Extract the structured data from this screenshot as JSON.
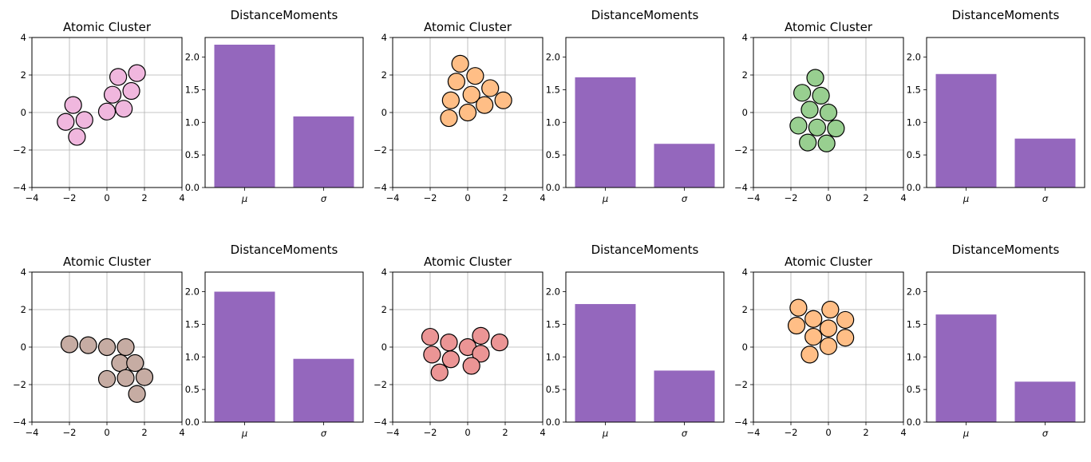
{
  "chart_data": [
    {
      "type": "scatter",
      "title": "Atomic Cluster",
      "xlim": [
        -4,
        4
      ],
      "ylim": [
        -4,
        4
      ],
      "xticks": [
        -4,
        -2,
        0,
        2,
        4
      ],
      "yticks": [
        -4,
        -2,
        0,
        2,
        4
      ],
      "grid": true,
      "color": "#f0b7de",
      "points": [
        [
          -2.2,
          -0.5
        ],
        [
          -1.8,
          0.4
        ],
        [
          -1.2,
          -0.4
        ],
        [
          -1.6,
          -1.3
        ],
        [
          0.0,
          0.05
        ],
        [
          0.3,
          0.95
        ],
        [
          0.9,
          0.2
        ],
        [
          1.3,
          1.15
        ],
        [
          0.6,
          1.9
        ],
        [
          1.6,
          2.1
        ]
      ]
    },
    {
      "type": "bar",
      "title": "DistanceMoments",
      "categories": [
        "μ",
        "σ"
      ],
      "values": [
        2.19,
        1.09
      ],
      "ylim": [
        0,
        2.3
      ],
      "yticks": [
        "0.0",
        "0.5",
        "1.0",
        "1.5",
        "2.0"
      ],
      "color": "#9467bd"
    },
    {
      "type": "scatter",
      "title": "Atomic Cluster",
      "xlim": [
        -4,
        4
      ],
      "ylim": [
        -4,
        4
      ],
      "xticks": [
        -4,
        -2,
        0,
        2,
        4
      ],
      "yticks": [
        -4,
        -2,
        0,
        2,
        4
      ],
      "grid": true,
      "color": "#ffbe86",
      "points": [
        [
          -0.4,
          2.6
        ],
        [
          -0.6,
          1.65
        ],
        [
          0.4,
          1.95
        ],
        [
          -0.9,
          0.65
        ],
        [
          0.2,
          0.95
        ],
        [
          1.2,
          1.3
        ],
        [
          -1.0,
          -0.3
        ],
        [
          0.0,
          0.0
        ],
        [
          0.9,
          0.4
        ],
        [
          1.9,
          0.65
        ]
      ]
    },
    {
      "type": "bar",
      "title": "DistanceMoments",
      "categories": [
        "μ",
        "σ"
      ],
      "values": [
        1.69,
        0.67
      ],
      "ylim": [
        0,
        2.3
      ],
      "yticks": [
        "0.0",
        "0.5",
        "1.0",
        "1.5",
        "2.0"
      ],
      "color": "#9467bd"
    },
    {
      "type": "scatter",
      "title": "Atomic Cluster",
      "xlim": [
        -4,
        4
      ],
      "ylim": [
        -4,
        4
      ],
      "xticks": [
        -4,
        -2,
        0,
        2,
        4
      ],
      "yticks": [
        -4,
        -2,
        0,
        2,
        4
      ],
      "grid": true,
      "color": "#98cf90",
      "points": [
        [
          -0.7,
          1.85
        ],
        [
          -1.4,
          1.05
        ],
        [
          -0.4,
          0.9
        ],
        [
          -1.0,
          0.15
        ],
        [
          0.0,
          0.0
        ],
        [
          -1.6,
          -0.7
        ],
        [
          -0.6,
          -0.8
        ],
        [
          0.4,
          -0.85
        ],
        [
          -1.1,
          -1.6
        ],
        [
          -0.1,
          -1.65
        ]
      ]
    },
    {
      "type": "bar",
      "title": "DistanceMoments",
      "categories": [
        "μ",
        "σ"
      ],
      "values": [
        1.74,
        0.75
      ],
      "ylim": [
        0,
        2.3
      ],
      "yticks": [
        "0.0",
        "0.5",
        "1.0",
        "1.5",
        "2.0"
      ],
      "color": "#9467bd"
    },
    {
      "type": "scatter",
      "title": "Atomic Cluster",
      "xlim": [
        -4,
        4
      ],
      "ylim": [
        -4,
        4
      ],
      "xticks": [
        -4,
        -2,
        0,
        2,
        4
      ],
      "yticks": [
        -4,
        -2,
        0,
        2,
        4
      ],
      "grid": true,
      "color": "#c6aca3",
      "points": [
        [
          -2.0,
          0.15
        ],
        [
          -1.0,
          0.1
        ],
        [
          0.0,
          0.0
        ],
        [
          1.0,
          0.0
        ],
        [
          0.7,
          -0.85
        ],
        [
          1.5,
          -0.85
        ],
        [
          0.0,
          -1.7
        ],
        [
          1.0,
          -1.65
        ],
        [
          2.0,
          -1.6
        ],
        [
          1.6,
          -2.5
        ]
      ]
    },
    {
      "type": "bar",
      "title": "DistanceMoments",
      "categories": [
        "μ",
        "σ"
      ],
      "values": [
        2.0,
        0.97
      ],
      "ylim": [
        0,
        2.3
      ],
      "yticks": [
        "0.0",
        "0.5",
        "1.0",
        "1.5",
        "2.0"
      ],
      "color": "#9467bd"
    },
    {
      "type": "scatter",
      "title": "Atomic Cluster",
      "xlim": [
        -4,
        4
      ],
      "ylim": [
        -4,
        4
      ],
      "xticks": [
        -4,
        -2,
        0,
        2,
        4
      ],
      "yticks": [
        -4,
        -2,
        0,
        2,
        4
      ],
      "grid": true,
      "color": "#eb9595",
      "points": [
        [
          -2.0,
          0.55
        ],
        [
          -1.9,
          -0.4
        ],
        [
          -1.0,
          0.25
        ],
        [
          -0.9,
          -0.65
        ],
        [
          0.0,
          0.0
        ],
        [
          0.7,
          0.6
        ],
        [
          0.7,
          -0.35
        ],
        [
          1.7,
          0.25
        ],
        [
          0.2,
          -1.0
        ],
        [
          -1.5,
          -1.35
        ]
      ]
    },
    {
      "type": "bar",
      "title": "DistanceMoments",
      "categories": [
        "μ",
        "σ"
      ],
      "values": [
        1.81,
        0.79
      ],
      "ylim": [
        0,
        2.3
      ],
      "yticks": [
        "0.0",
        "0.5",
        "1.0",
        "1.5",
        "2.0"
      ],
      "color": "#9467bd"
    },
    {
      "type": "scatter",
      "title": "Atomic Cluster",
      "xlim": [
        -4,
        4
      ],
      "ylim": [
        -4,
        4
      ],
      "xticks": [
        -4,
        -2,
        0,
        2,
        4
      ],
      "yticks": [
        -4,
        -2,
        0,
        2,
        4
      ],
      "grid": true,
      "color": "#ffbe86",
      "points": [
        [
          -1.6,
          2.1
        ],
        [
          -1.7,
          1.15
        ],
        [
          -0.8,
          1.5
        ],
        [
          0.1,
          2.0
        ],
        [
          0.0,
          1.0
        ],
        [
          0.9,
          1.45
        ],
        [
          -0.8,
          0.55
        ],
        [
          0.9,
          0.5
        ],
        [
          0.0,
          0.05
        ],
        [
          -1.0,
          -0.4
        ]
      ]
    },
    {
      "type": "bar",
      "title": "DistanceMoments",
      "categories": [
        "μ",
        "σ"
      ],
      "values": [
        1.65,
        0.62
      ],
      "ylim": [
        0,
        2.3
      ],
      "yticks": [
        "0.0",
        "0.5",
        "1.0",
        "1.5",
        "2.0"
      ],
      "color": "#9467bd"
    }
  ]
}
